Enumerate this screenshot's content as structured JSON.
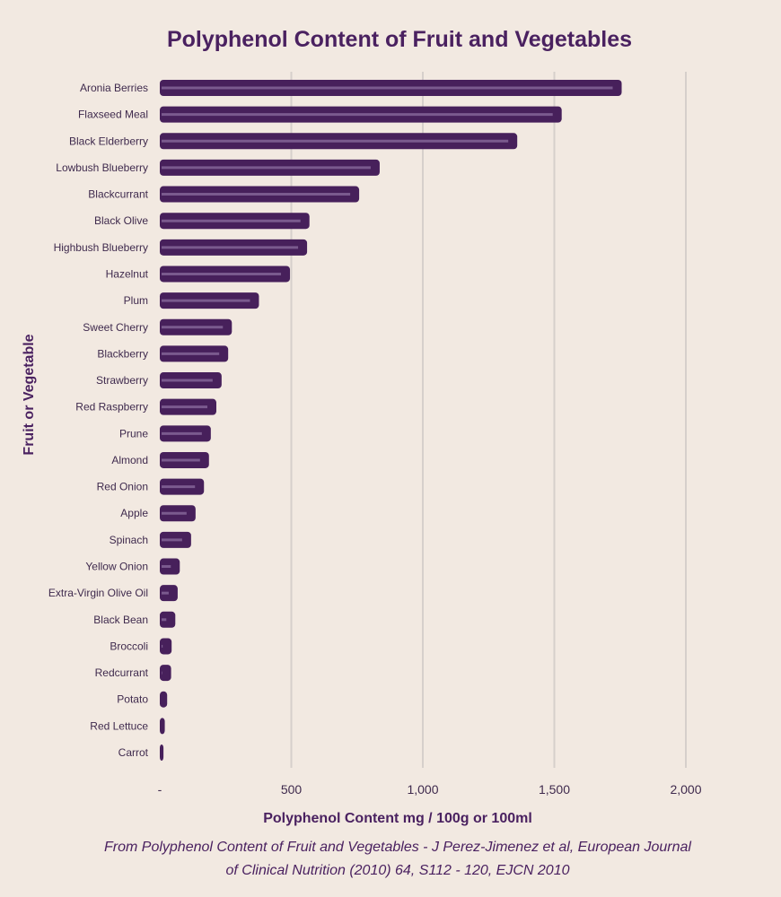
{
  "chart_data": {
    "type": "bar",
    "orientation": "horizontal",
    "title": "Polyphenol Content of Fruit and Vegetables",
    "xlabel": "Polyphenol Content mg / 100g or 100ml",
    "ylabel": "Fruit or Vegetable",
    "xlim": [
      0,
      2000
    ],
    "x_ticks": [
      0,
      500,
      1000,
      1500,
      2000
    ],
    "x_tick_labels": [
      "-",
      "500",
      "1,000",
      "1,500",
      "2,000"
    ],
    "grid": "vertical",
    "colors": {
      "bar": "#47205b",
      "bar_highlight": "#7a5a8e",
      "text": "#4a2160",
      "background": "#f2e9e1",
      "grid": "#d6cfcb"
    },
    "categories": [
      "Aronia Berries",
      "Flaxseed Meal",
      "Black Elderberry",
      "Lowbush Blueberry",
      "Blackcurrant",
      "Black Olive",
      "Highbush Blueberry",
      "Hazelnut",
      "Plum",
      "Sweet Cherry",
      "Blackberry",
      "Strawberry",
      "Red Raspberry",
      "Prune",
      "Almond",
      "Red Onion",
      "Apple",
      "Spinach",
      "Yellow Onion",
      "Extra-Virgin Olive Oil",
      "Black Bean",
      "Broccoli",
      "Redcurrant",
      "Potato",
      "Red Lettuce",
      "Carrot"
    ],
    "values": [
      1756,
      1528,
      1359,
      836,
      758,
      569,
      560,
      495,
      377,
      274,
      260,
      235,
      215,
      194,
      187,
      168,
      136,
      119,
      76,
      68,
      59,
      45,
      43,
      28,
      19,
      14
    ]
  },
  "source_lines": [
    "From Polyphenol Content of Fruit and Vegetables - J Perez-Jimenez et al, European Journal",
    "of Clinical Nutrition (2010) 64, S112 - 120, EJCN 2010"
  ]
}
